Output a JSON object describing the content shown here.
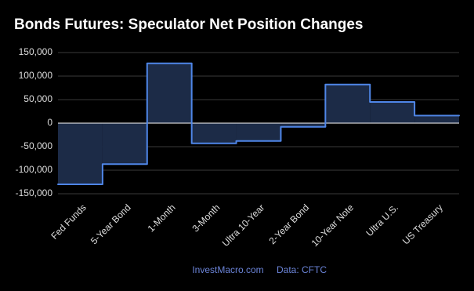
{
  "chart_data": {
    "type": "step",
    "title": "Bonds Futures: Speculator Net Position Changes",
    "categories": [
      "Fed Funds",
      "5-Year Bond",
      "1-Month",
      "3-Month",
      "Ultra 10-Year",
      "2-Year Bond",
      "10-Year Note",
      "Ultra U.S.",
      "US Treasury"
    ],
    "values": [
      -130000,
      -87000,
      127000,
      -43000,
      -38000,
      -8000,
      82000,
      45000,
      16000
    ],
    "color": "#4f86e8",
    "fill": "#1c2b47",
    "ylim": [
      -160000,
      160000
    ],
    "yticks": [
      {
        "value": 150000,
        "label": "150,000"
      },
      {
        "value": 100000,
        "label": "100,000"
      },
      {
        "value": 50000,
        "label": "50,000"
      },
      0,
      {
        "value": -50000,
        "label": "-50,000"
      },
      {
        "value": -100000,
        "label": "-100,000"
      },
      {
        "value": -150000,
        "label": "-150,000"
      }
    ],
    "grid": true,
    "source": [
      "InvestMacro.com",
      "Data: CFTC"
    ]
  }
}
